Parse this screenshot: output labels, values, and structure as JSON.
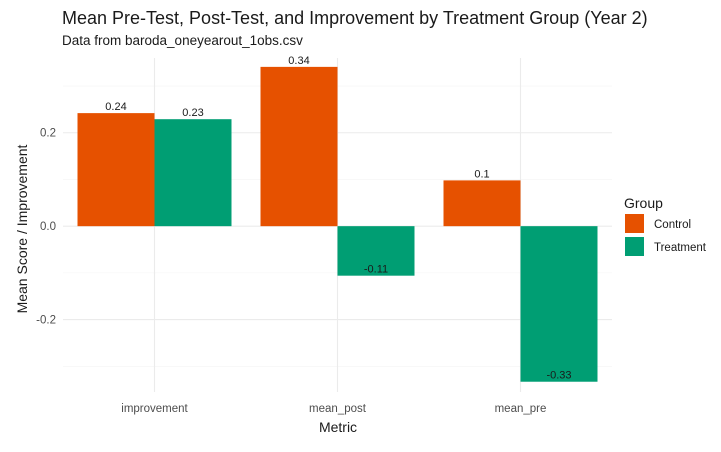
{
  "chart_data": {
    "type": "bar",
    "title": "Mean Pre-Test, Post-Test, and Improvement by Treatment Group (Year 2)",
    "subtitle": "Data from baroda_oneyearout_1obs.csv",
    "xlabel": "Metric",
    "ylabel": "Mean Score / Improvement",
    "categories": [
      "improvement",
      "mean_post",
      "mean_pre"
    ],
    "series": [
      {
        "name": "Control",
        "color": "#E65100",
        "values": [
          0.242,
          0.341,
          0.098
        ],
        "labels": [
          "0.24",
          "0.34",
          "0.1"
        ]
      },
      {
        "name": "Treatment",
        "color": "#009E73",
        "values": [
          0.229,
          -0.106,
          -0.333
        ],
        "labels": [
          "0.23",
          "-0.11",
          "-0.33"
        ]
      }
    ],
    "ylim": [
      -0.355,
      0.36
    ],
    "yticks": [
      -0.2,
      0.0,
      0.2
    ],
    "ytick_labels": [
      "-0.2",
      "0.0",
      "0.2"
    ],
    "grid": true,
    "legend": {
      "title": "Group",
      "position": "right"
    }
  }
}
